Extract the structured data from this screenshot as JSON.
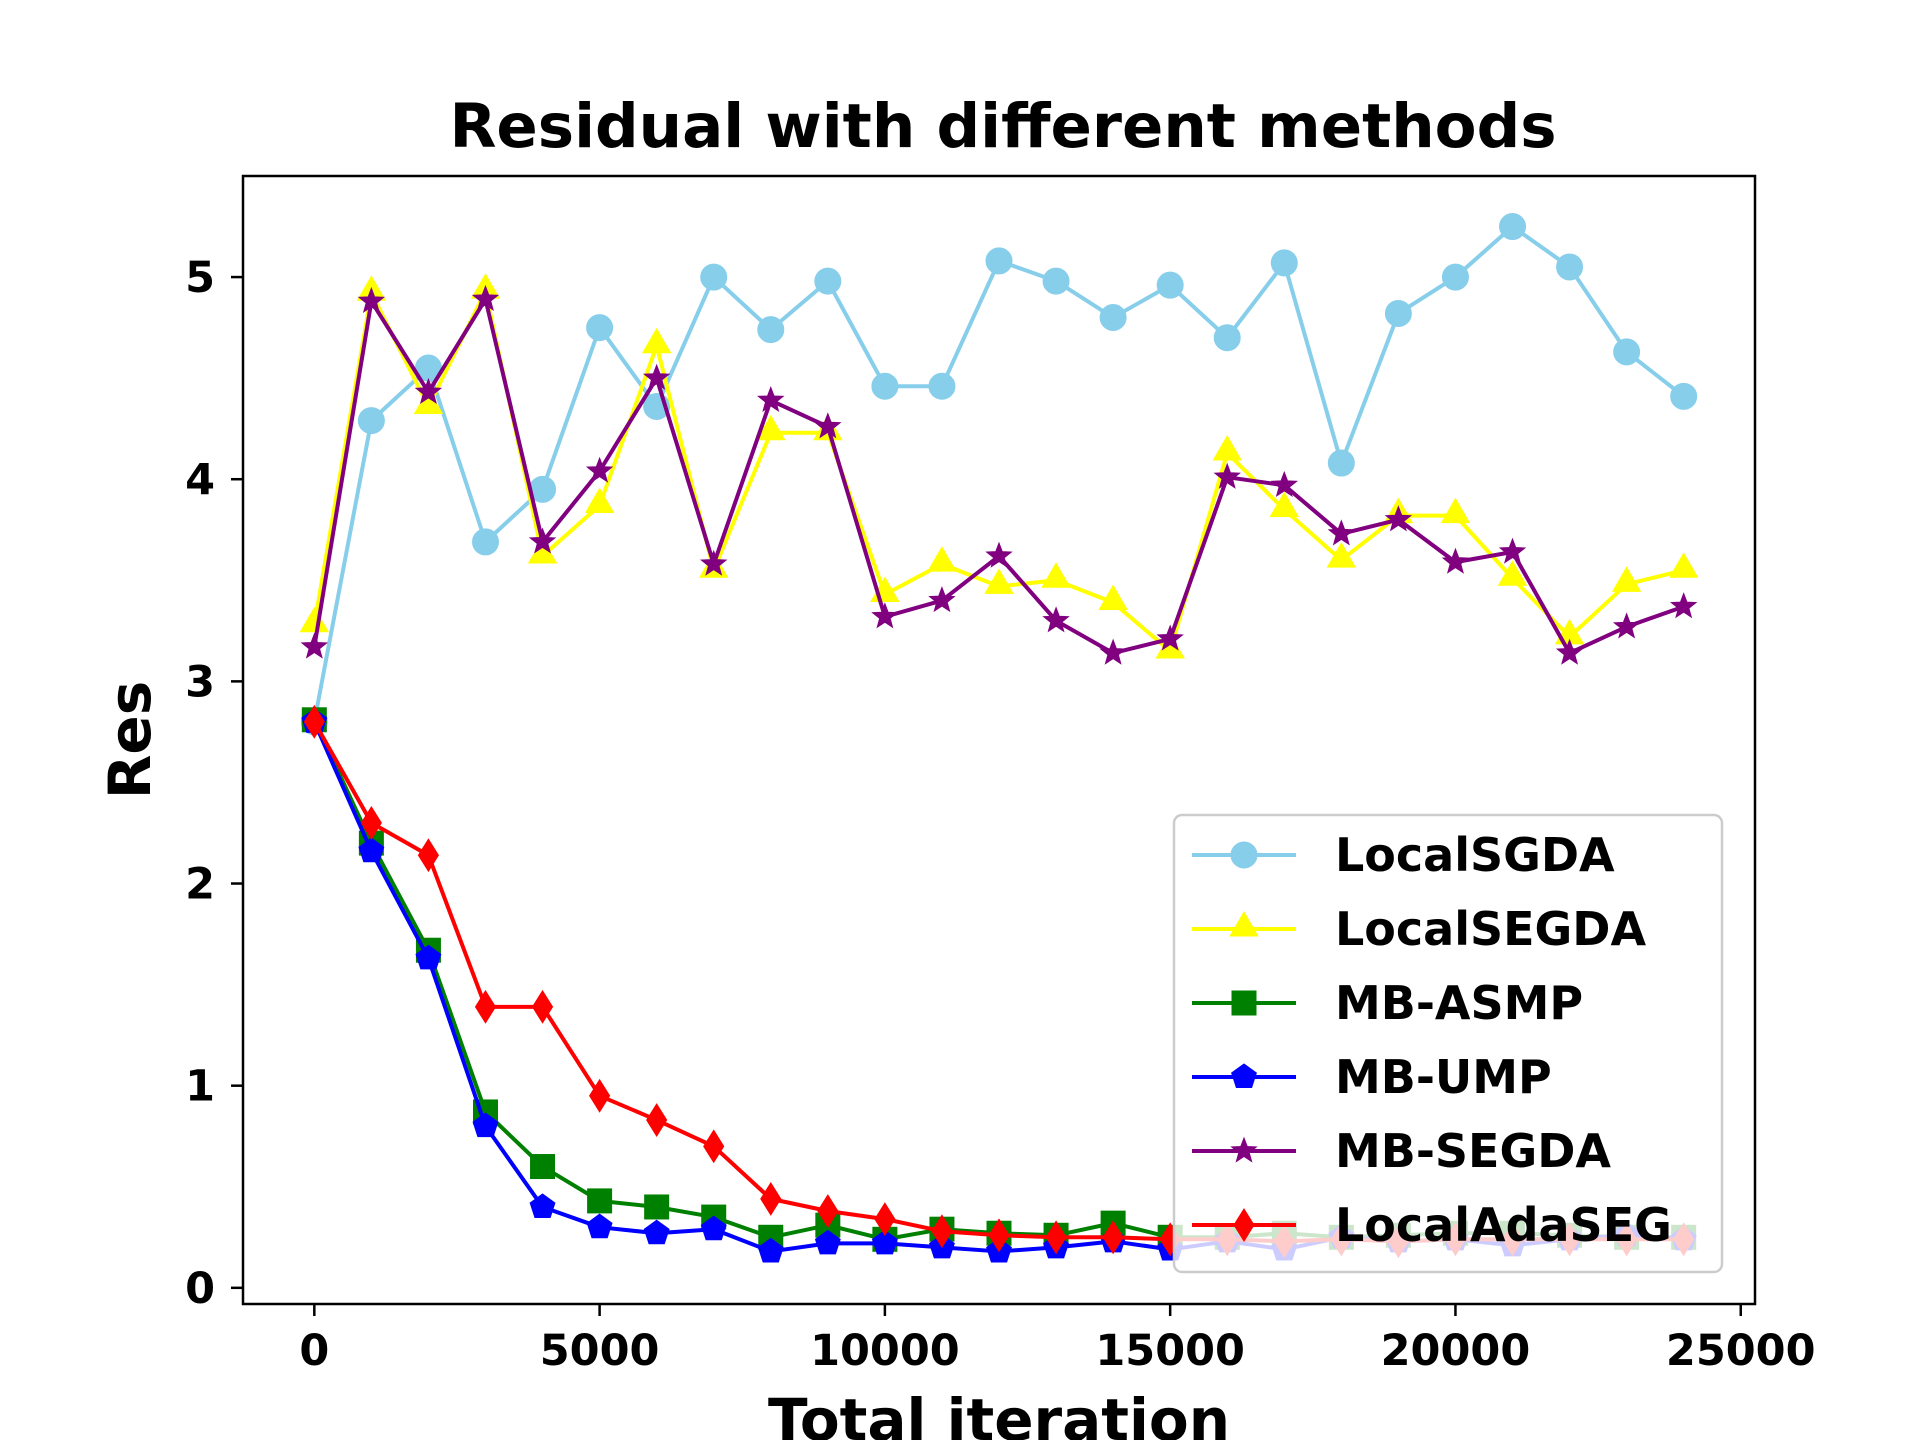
{
  "chart_data": {
    "type": "line",
    "title": "Residual with different methods",
    "xlabel": "Total iteration",
    "ylabel": "Res",
    "xlim": [
      -1250,
      25250
    ],
    "ylim": [
      -0.08,
      5.5
    ],
    "xticks": [
      0,
      5000,
      10000,
      15000,
      20000,
      25000
    ],
    "yticks": [
      0,
      1,
      2,
      3,
      4,
      5
    ],
    "legend_position": "lower-right",
    "grid": false,
    "x": [
      0,
      1000,
      2000,
      3000,
      4000,
      5000,
      6000,
      7000,
      8000,
      9000,
      10000,
      11000,
      12000,
      13000,
      14000,
      15000,
      16000,
      17000,
      18000,
      19000,
      20000,
      21000,
      22000,
      23000,
      24000
    ],
    "series": [
      {
        "name": "LocalSGDA",
        "color": "#87ceeb",
        "marker": "circle",
        "values": [
          2.8,
          4.29,
          4.55,
          3.69,
          3.95,
          4.75,
          4.36,
          5.0,
          4.74,
          4.98,
          4.46,
          4.46,
          5.08,
          4.98,
          4.8,
          4.96,
          4.7,
          5.07,
          4.08,
          4.82,
          5.0,
          5.25,
          5.05,
          4.63,
          4.41
        ]
      },
      {
        "name": "LocalSEGDA",
        "color": "#ffff00",
        "marker": "triangle",
        "values": [
          3.28,
          4.92,
          4.36,
          4.93,
          3.62,
          3.87,
          4.66,
          3.55,
          4.23,
          4.23,
          3.43,
          3.58,
          3.47,
          3.5,
          3.39,
          3.15,
          4.13,
          3.85,
          3.6,
          3.82,
          3.82,
          3.51,
          3.22,
          3.48,
          3.55
        ]
      },
      {
        "name": "MB-ASMP",
        "color": "#008000",
        "marker": "square",
        "values": [
          2.81,
          2.2,
          1.67,
          0.87,
          0.6,
          0.43,
          0.4,
          0.35,
          0.25,
          0.31,
          0.24,
          0.29,
          0.27,
          0.26,
          0.32,
          0.25,
          0.25,
          0.27,
          0.25,
          0.26,
          0.27,
          0.27,
          0.26,
          0.25,
          0.25
        ]
      },
      {
        "name": "MB-UMP",
        "color": "#0000ff",
        "marker": "pentagon",
        "values": [
          2.8,
          2.16,
          1.63,
          0.8,
          0.4,
          0.3,
          0.27,
          0.29,
          0.18,
          0.22,
          0.22,
          0.2,
          0.18,
          0.2,
          0.23,
          0.19,
          0.23,
          0.19,
          0.25,
          0.23,
          0.24,
          0.21,
          0.24,
          0.26,
          0.24
        ]
      },
      {
        "name": "MB-SEGDA",
        "color": "#800080",
        "marker": "star",
        "values": [
          3.17,
          4.88,
          4.43,
          4.89,
          3.69,
          4.04,
          4.5,
          3.58,
          4.39,
          4.26,
          3.32,
          3.4,
          3.62,
          3.3,
          3.14,
          3.21,
          4.01,
          3.97,
          3.73,
          3.8,
          3.59,
          3.64,
          3.14,
          3.27,
          3.37
        ]
      },
      {
        "name": "LocalAdaSEG",
        "color": "#ff0000",
        "marker": "diamond",
        "values": [
          2.8,
          2.3,
          2.14,
          1.39,
          1.39,
          0.95,
          0.83,
          0.7,
          0.44,
          0.38,
          0.34,
          0.28,
          0.26,
          0.25,
          0.25,
          0.24,
          0.24,
          0.23,
          0.24,
          0.23,
          0.24,
          0.24,
          0.24,
          0.24,
          0.24
        ]
      }
    ]
  }
}
